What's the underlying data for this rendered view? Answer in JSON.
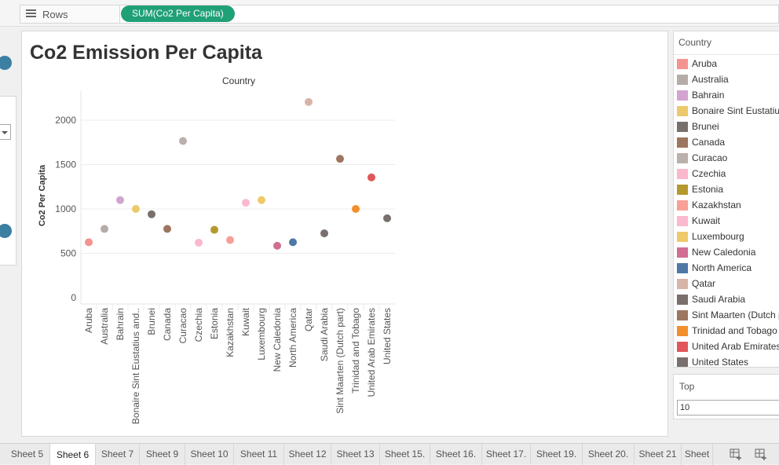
{
  "rows": {
    "label": "Rows",
    "pill": "SUM(Co2 Per Capita)"
  },
  "title": "Co2 Emission Per Capita",
  "legend": {
    "title": "Country",
    "items": [
      {
        "name": "Aruba",
        "color": "#f4938f"
      },
      {
        "name": "Australia",
        "color": "#b5aca7"
      },
      {
        "name": "Bahrain",
        "color": "#d3a4cf"
      },
      {
        "name": "Bonaire Sint Eustatius and Saba",
        "color": "#ecc96b"
      },
      {
        "name": "Brunei",
        "color": "#79706e"
      },
      {
        "name": "Canada",
        "color": "#9d7660"
      },
      {
        "name": "Curacao",
        "color": "#bab0ac"
      },
      {
        "name": "Czechia",
        "color": "#fbb7cc"
      },
      {
        "name": "Estonia",
        "color": "#b6992d"
      },
      {
        "name": "Kazakhstan",
        "color": "#f89f96"
      },
      {
        "name": "Kuwait",
        "color": "#fbb9cf"
      },
      {
        "name": "Luxembourg",
        "color": "#efca6b"
      },
      {
        "name": "New Caledonia",
        "color": "#d16e92"
      },
      {
        "name": "North America",
        "color": "#4e79a7"
      },
      {
        "name": "Qatar",
        "color": "#d7b5a6"
      },
      {
        "name": "Saudi Arabia",
        "color": "#79706e"
      },
      {
        "name": "Sint Maarten (Dutch part)",
        "color": "#9d7660"
      },
      {
        "name": "Trinidad and Tobago",
        "color": "#f28e2b"
      },
      {
        "name": "United Arab Emirates",
        "color": "#e15759"
      },
      {
        "name": "United States",
        "color": "#79706e"
      }
    ]
  },
  "top_filter": {
    "title": "Top",
    "value": "10"
  },
  "chart_data": {
    "type": "scatter",
    "title": "Country",
    "ylabel": "Co2 Per Capita",
    "ylim": [
      0,
      2200
    ],
    "yticks": [
      0,
      500,
      1000,
      1500,
      2000
    ],
    "grid": true,
    "categories": [
      "Aruba",
      "Australia",
      "Bahrain",
      "Bonaire Sint Eustatius and..",
      "Brunei",
      "Canada",
      "Curacao",
      "Czechia",
      "Estonia",
      "Kazakhstan",
      "Kuwait",
      "Luxembourg",
      "New Caledonia",
      "North America",
      "Qatar",
      "Saudi Arabia",
      "Sint Maarten (Dutch part)",
      "Trinidad and Tobago",
      "United Arab Emirates",
      "United States"
    ],
    "values": [
      625,
      775,
      1100,
      1000,
      940,
      775,
      1765,
      620,
      765,
      650,
      1070,
      1100,
      585,
      625,
      2205,
      725,
      1565,
      1000,
      1355,
      895
    ],
    "colors": [
      "#f4938f",
      "#b5aca7",
      "#d3a4cf",
      "#ecc96b",
      "#79706e",
      "#9d7660",
      "#bab0ac",
      "#fbb7cc",
      "#b6992d",
      "#f89f96",
      "#fbb9cf",
      "#efca6b",
      "#d16e92",
      "#4e79a7",
      "#d7b5a6",
      "#79706e",
      "#9d7660",
      "#f28e2b",
      "#e15759",
      "#79706e"
    ]
  },
  "tabs": [
    {
      "label": "Sheet 5"
    },
    {
      "label": "Sheet 6"
    },
    {
      "label": "Sheet 7"
    },
    {
      "label": "Sheet 9"
    },
    {
      "label": "Sheet 10"
    },
    {
      "label": "Sheet 11"
    },
    {
      "label": "Sheet 12"
    },
    {
      "label": "Sheet 13"
    },
    {
      "label": "Sheet 15."
    },
    {
      "label": "Sheet 16."
    },
    {
      "label": "Sheet 17."
    },
    {
      "label": "Sheet 19."
    },
    {
      "label": "Sheet 20."
    },
    {
      "label": "Sheet 21"
    },
    {
      "label": "Sheet"
    }
  ],
  "active_tab": "Sheet 6"
}
